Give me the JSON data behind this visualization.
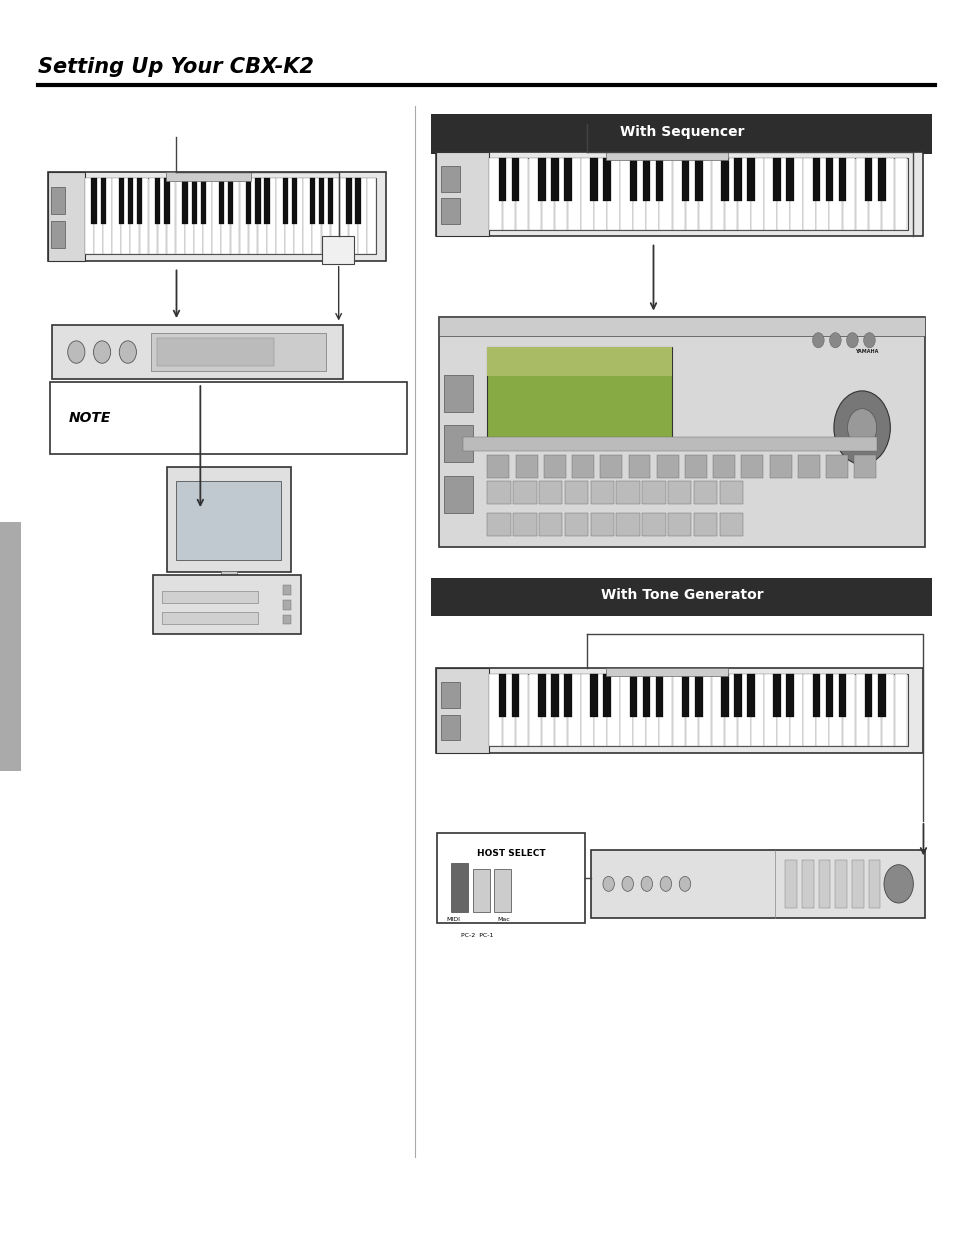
{
  "title": "Setting Up Your CBX-K2",
  "section1_label": "With Sequencer",
  "section2_label": "With Tone Generator",
  "note_label": "NOTE",
  "bg_color": "#ffffff",
  "title_color": "#000000",
  "section_header_bg": "#2d2d2d",
  "section_header_text": "#ffffff",
  "divider_color": "#000000",
  "vertical_line_x": 0.435,
  "title_fontsize": 15,
  "section_fontsize": 10,
  "note_fontsize": 10
}
